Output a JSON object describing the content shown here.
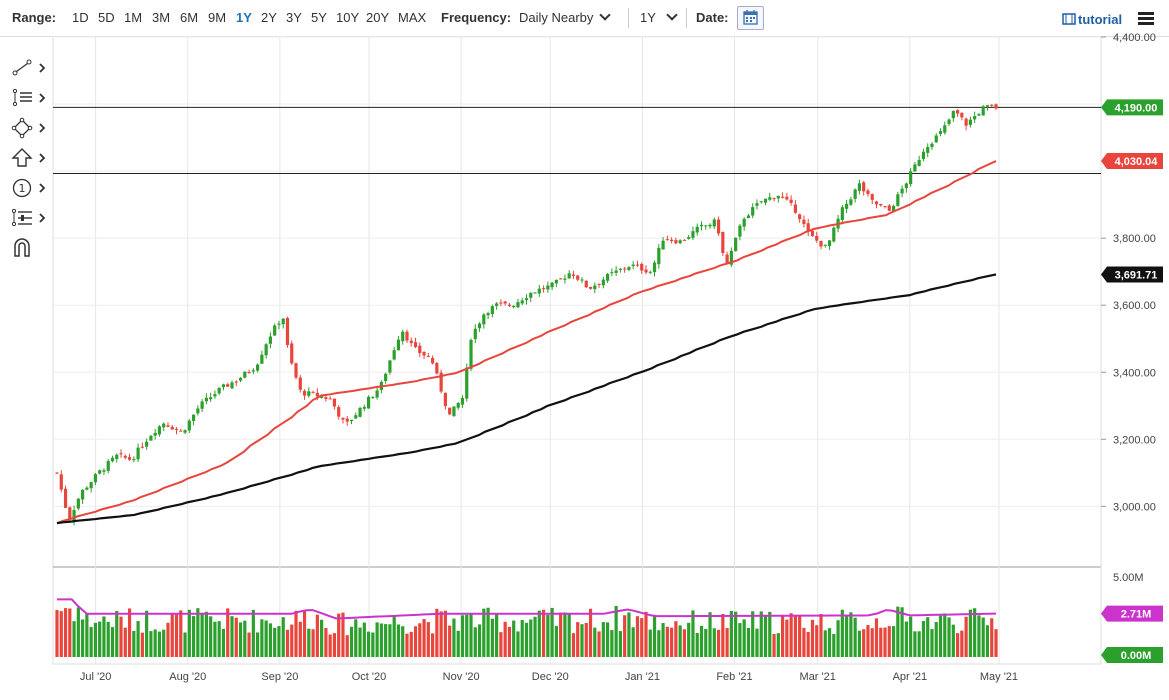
{
  "toolbar": {
    "range_label": "Range:",
    "ranges": [
      "1D",
      "5D",
      "1M",
      "3M",
      "6M",
      "9M",
      "1Y",
      "2Y",
      "3Y",
      "5Y",
      "10Y",
      "20Y",
      "MAX"
    ],
    "active_range": "1Y",
    "frequency_label": "Frequency:",
    "frequency_value": "Daily Nearby",
    "period_value": "1Y",
    "date_label": "Date:",
    "tutorial_label": "tutorial"
  },
  "icons": {
    "left_tools": [
      "line-draw-icon",
      "list-lines-icon",
      "shape-icon",
      "arrow-up-icon",
      "counter-icon",
      "fib-tool-icon",
      "magnet-icon"
    ],
    "calendar": "calendar-icon",
    "menu": "hamburger-menu-icon",
    "tutorial": "film-icon"
  },
  "colors": {
    "up": "#2ca02c",
    "down": "#e8453c",
    "ma_short": "#e8453c",
    "ma_long": "#111111",
    "volume_avg": "#cc33cc",
    "accent": "#1f73b7"
  },
  "chart_data": {
    "type": "candlestick",
    "x_ticks": [
      "Jul '20",
      "Aug '20",
      "Sep '20",
      "Oct '20",
      "Nov '20",
      "Dec '20",
      "Jan '21",
      "Feb '21",
      "Mar '21",
      "Apr '21",
      "May '21"
    ],
    "price_axis": {
      "ticks": [
        "4,400.00",
        "4,190.00",
        "4,030.04",
        "3,800.00",
        "3,691.71",
        "3,600.00",
        "3,400.00",
        "3,200.00",
        "3,000.00"
      ],
      "range": [
        2840,
        4400
      ]
    },
    "volume_axis": {
      "ticks": [
        "5.00M",
        "2.71M",
        "0.00M"
      ],
      "range": [
        0,
        5.0
      ]
    },
    "horizontal_lines": [
      4190,
      3993
    ],
    "last_price_label": "4,190.00",
    "ma_short_label": "4,030.04",
    "ma_long_label": "3,691.71",
    "volume_avg_label": "2.71M",
    "volume_last_label": "0.00M",
    "price_path": [
      [
        "2020-06-18",
        3100
      ],
      [
        "2020-06-22",
        2960
      ],
      [
        "2020-06-26",
        3040
      ],
      [
        "2020-07-02",
        3100
      ],
      [
        "2020-07-08",
        3150
      ],
      [
        "2020-07-13",
        3140
      ],
      [
        "2020-07-20",
        3220
      ],
      [
        "2020-07-24",
        3250
      ],
      [
        "2020-07-30",
        3220
      ],
      [
        "2020-08-05",
        3300
      ],
      [
        "2020-08-12",
        3350
      ],
      [
        "2020-08-18",
        3380
      ],
      [
        "2020-08-24",
        3420
      ],
      [
        "2020-08-28",
        3500
      ],
      [
        "2020-09-02",
        3570
      ],
      [
        "2020-09-04",
        3450
      ],
      [
        "2020-09-08",
        3340
      ],
      [
        "2020-09-14",
        3330
      ],
      [
        "2020-09-18",
        3320
      ],
      [
        "2020-09-23",
        3240
      ],
      [
        "2020-09-29",
        3300
      ],
      [
        "2020-10-05",
        3360
      ],
      [
        "2020-10-09",
        3460
      ],
      [
        "2020-10-12",
        3530
      ],
      [
        "2020-10-16",
        3470
      ],
      [
        "2020-10-22",
        3440
      ],
      [
        "2020-10-28",
        3270
      ],
      [
        "2020-11-02",
        3330
      ],
      [
        "2020-11-04",
        3500
      ],
      [
        "2020-11-09",
        3580
      ],
      [
        "2020-11-13",
        3600
      ],
      [
        "2020-11-18",
        3600
      ],
      [
        "2020-11-25",
        3640
      ],
      [
        "2020-12-02",
        3660
      ],
      [
        "2020-12-08",
        3700
      ],
      [
        "2020-12-14",
        3650
      ],
      [
        "2020-12-21",
        3690
      ],
      [
        "2020-12-28",
        3720
      ],
      [
        "2021-01-04",
        3700
      ],
      [
        "2021-01-08",
        3800
      ],
      [
        "2021-01-14",
        3790
      ],
      [
        "2021-01-20",
        3830
      ],
      [
        "2021-01-26",
        3850
      ],
      [
        "2021-01-29",
        3710
      ],
      [
        "2021-02-04",
        3860
      ],
      [
        "2021-02-10",
        3910
      ],
      [
        "2021-02-16",
        3930
      ],
      [
        "2021-02-22",
        3880
      ],
      [
        "2021-02-26",
        3810
      ],
      [
        "2021-03-04",
        3770
      ],
      [
        "2021-03-09",
        3880
      ],
      [
        "2021-03-15",
        3960
      ],
      [
        "2021-03-19",
        3910
      ],
      [
        "2021-03-25",
        3880
      ],
      [
        "2021-03-31",
        3970
      ],
      [
        "2021-04-06",
        4070
      ],
      [
        "2021-04-12",
        4120
      ],
      [
        "2021-04-16",
        4180
      ],
      [
        "2021-04-20",
        4140
      ],
      [
        "2021-04-26",
        4190
      ],
      [
        "2021-04-30",
        4190
      ]
    ],
    "ma_short_path": [
      [
        "2020-06-18",
        2950
      ],
      [
        "2020-07-15",
        3020
      ],
      [
        "2020-08-15",
        3130
      ],
      [
        "2020-09-15",
        3330
      ],
      [
        "2020-10-15",
        3370
      ],
      [
        "2020-11-01",
        3400
      ],
      [
        "2020-12-01",
        3520
      ],
      [
        "2021-01-01",
        3640
      ],
      [
        "2021-02-01",
        3730
      ],
      [
        "2021-03-01",
        3830
      ],
      [
        "2021-03-25",
        3870
      ],
      [
        "2021-04-15",
        3960
      ],
      [
        "2021-04-30",
        4030.04
      ]
    ],
    "ma_long_path": [
      [
        "2020-06-18",
        2950
      ],
      [
        "2020-07-15",
        2975
      ],
      [
        "2020-08-15",
        3040
      ],
      [
        "2020-09-15",
        3120
      ],
      [
        "2020-10-15",
        3160
      ],
      [
        "2020-11-01",
        3190
      ],
      [
        "2020-12-01",
        3300
      ],
      [
        "2021-01-01",
        3400
      ],
      [
        "2021-02-01",
        3510
      ],
      [
        "2021-03-01",
        3590
      ],
      [
        "2021-04-01",
        3630
      ],
      [
        "2021-04-30",
        3691.71
      ]
    ],
    "volume_avg_path": [
      [
        "2020-06-18",
        3.6
      ],
      [
        "2020-06-25",
        3.6
      ],
      [
        "2020-06-27",
        2.7
      ],
      [
        "2020-09-05",
        2.7
      ],
      [
        "2020-09-12",
        3.0
      ],
      [
        "2020-09-20",
        2.4
      ],
      [
        "2020-10-25",
        2.7
      ],
      [
        "2020-12-20",
        2.7
      ],
      [
        "2020-12-28",
        3.0
      ],
      [
        "2021-01-05",
        2.55
      ],
      [
        "2021-03-20",
        2.6
      ],
      [
        "2021-03-25",
        3.0
      ],
      [
        "2021-04-01",
        2.6
      ],
      [
        "2021-04-30",
        2.71
      ]
    ]
  }
}
